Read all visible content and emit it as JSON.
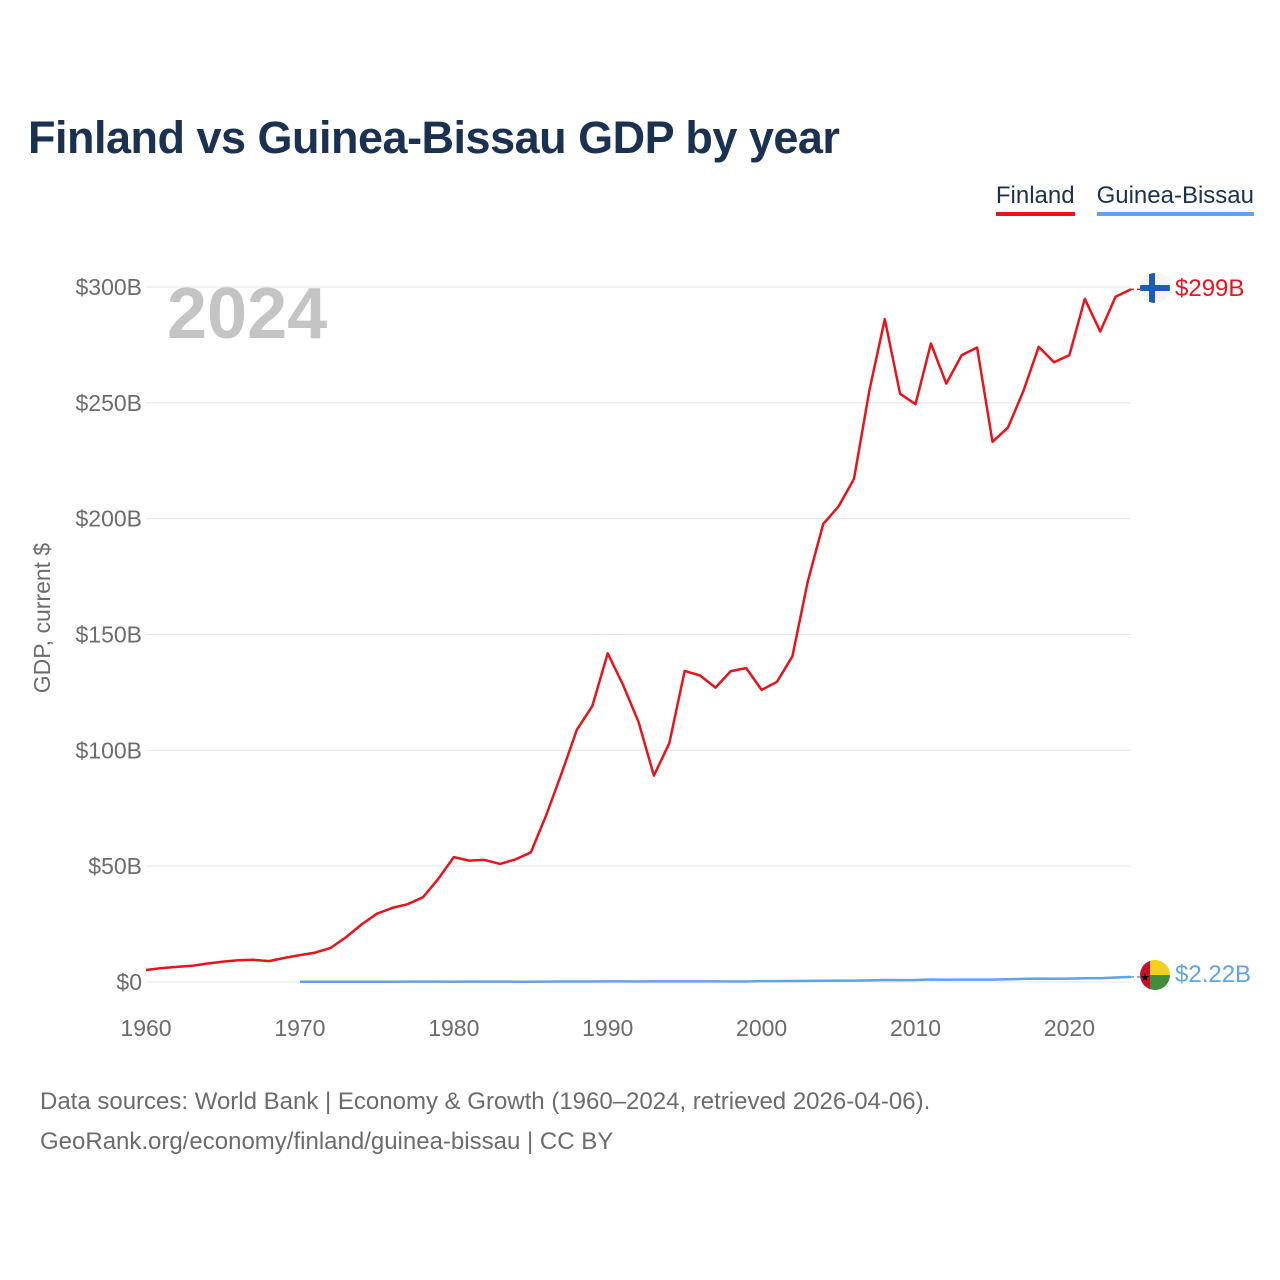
{
  "title": "Finland vs Guinea-Bissau GDP by year",
  "legend": {
    "finland": "Finland",
    "guinea_bissau": "Guinea-Bissau"
  },
  "year_label": "2024",
  "colors": {
    "finland": "#e8141c",
    "guinea_bissau": "#5ea4e6",
    "title": "#1b3152"
  },
  "footer": {
    "line1": "Data sources: World Bank | Economy & Growth (1960–2024, retrieved 2026-04-06).",
    "line2": "GeoRank.org/economy/finland/guinea-bissau | CC BY"
  },
  "chart_data": {
    "type": "line",
    "title": "Finland vs Guinea-Bissau GDP by year",
    "xlabel": "",
    "ylabel": "GDP, current $",
    "xlim": [
      1960,
      2024
    ],
    "ylim": [
      0,
      300
    ],
    "y_unit": "billion USD",
    "x_ticks": [
      "1960",
      "1970",
      "1980",
      "1990",
      "2000",
      "2010",
      "2020"
    ],
    "y_ticks": [
      {
        "value": 0,
        "label": "$0"
      },
      {
        "value": 50,
        "label": "$50B"
      },
      {
        "value": 100,
        "label": "$100B"
      },
      {
        "value": 150,
        "label": "$150B"
      },
      {
        "value": 200,
        "label": "$200B"
      },
      {
        "value": 250,
        "label": "$250B"
      },
      {
        "value": 300,
        "label": "$300B"
      }
    ],
    "grid": true,
    "legend_position": "top-right",
    "series": [
      {
        "name": "Finland",
        "end_label": "$299B",
        "x": [
          1960,
          1961,
          1962,
          1963,
          1964,
          1965,
          1966,
          1967,
          1968,
          1969,
          1970,
          1971,
          1972,
          1973,
          1974,
          1975,
          1976,
          1977,
          1978,
          1979,
          1980,
          1981,
          1982,
          1983,
          1984,
          1985,
          1986,
          1987,
          1988,
          1989,
          1990,
          1991,
          1992,
          1993,
          1994,
          1995,
          1996,
          1997,
          1998,
          1999,
          2000,
          2001,
          2002,
          2003,
          2004,
          2005,
          2006,
          2007,
          2008,
          2009,
          2010,
          2011,
          2012,
          2013,
          2014,
          2015,
          2016,
          2017,
          2018,
          2019,
          2020,
          2021,
          2022,
          2023,
          2024
        ],
        "values": [
          5.2,
          6.0,
          6.5,
          7.0,
          8.0,
          8.8,
          9.4,
          9.6,
          9.0,
          10.4,
          11.6,
          12.7,
          14.7,
          19.4,
          24.8,
          29.5,
          32.0,
          33.6,
          36.6,
          44.6,
          53.9,
          52.4,
          52.7,
          51.0,
          52.9,
          55.9,
          72.0,
          90.0,
          108.9,
          119.1,
          141.9,
          128.2,
          112.3,
          89.1,
          103.1,
          134.3,
          132.3,
          127.1,
          134.2,
          135.5,
          126.1,
          129.6,
          140.6,
          172.9,
          197.7,
          205.3,
          217.2,
          255.4,
          286.1,
          253.9,
          249.4,
          275.6,
          258.3,
          270.6,
          273.9,
          233.2,
          239.3,
          255.0,
          274.2,
          267.5,
          270.6,
          294.9,
          280.8,
          295.8,
          299.0
        ]
      },
      {
        "name": "Guinea-Bissau",
        "end_label": "$2.22B",
        "x": [
          1970,
          1971,
          1972,
          1973,
          1974,
          1975,
          1976,
          1977,
          1978,
          1979,
          1980,
          1981,
          1982,
          1983,
          1984,
          1985,
          1986,
          1987,
          1988,
          1989,
          1990,
          1991,
          1992,
          1993,
          1994,
          1995,
          1996,
          1997,
          1998,
          1999,
          2000,
          2001,
          2002,
          2003,
          2004,
          2005,
          2006,
          2007,
          2008,
          2009,
          2010,
          2011,
          2012,
          2013,
          2014,
          2015,
          2016,
          2017,
          2018,
          2019,
          2020,
          2021,
          2022,
          2023,
          2024
        ],
        "values": [
          0.08,
          0.09,
          0.1,
          0.11,
          0.12,
          0.14,
          0.15,
          0.16,
          0.17,
          0.17,
          0.14,
          0.17,
          0.18,
          0.17,
          0.12,
          0.14,
          0.17,
          0.2,
          0.2,
          0.22,
          0.24,
          0.26,
          0.23,
          0.24,
          0.24,
          0.25,
          0.27,
          0.27,
          0.21,
          0.22,
          0.37,
          0.39,
          0.42,
          0.48,
          0.53,
          0.59,
          0.59,
          0.7,
          0.85,
          0.83,
          0.85,
          1.1,
          0.99,
          1.05,
          1.03,
          1.05,
          1.18,
          1.35,
          1.45,
          1.44,
          1.47,
          1.64,
          1.63,
          1.95,
          2.22
        ]
      }
    ]
  }
}
